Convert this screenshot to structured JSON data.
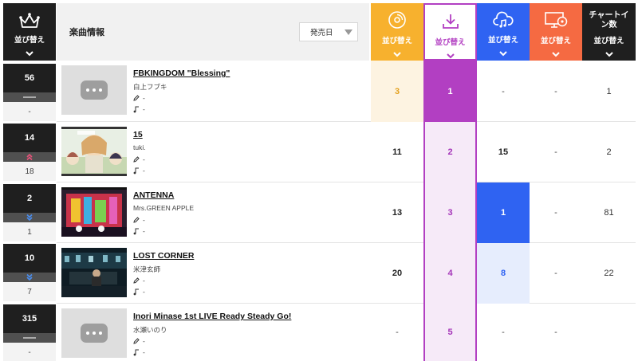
{
  "header": {
    "rank_sort_label": "並び替え",
    "info_title": "楽曲情報",
    "sort_select_value": "発売日",
    "col_sort_label": "並び替え",
    "chart_in_label": "チャートイン数"
  },
  "colors": {
    "col1": "#f7b12e",
    "col2": "#b23fc2",
    "col3": "#2f63f2",
    "col4": "#f56a42",
    "dark": "#1f1f1f"
  },
  "rows": [
    {
      "rank": "56",
      "prev": "-",
      "move": "none",
      "title": "FBKINGDOM \"Blessing\"",
      "artist": "白上フブキ",
      "lyricist": "-",
      "composer": "-",
      "thumb": "placeholder",
      "c1": "3",
      "c2": "1",
      "c3": "-",
      "c4": "-",
      "c5": "1"
    },
    {
      "rank": "14",
      "prev": "18",
      "move": "up",
      "title": "15",
      "artist": "tuki.",
      "lyricist": "-",
      "composer": "-",
      "thumb": "anime",
      "c1": "11",
      "c2": "2",
      "c3": "15",
      "c4": "-",
      "c5": "2"
    },
    {
      "rank": "2",
      "prev": "1",
      "move": "down",
      "title": "ANTENNA",
      "artist": "Mrs.GREEN APPLE",
      "lyricist": "-",
      "composer": "-",
      "thumb": "colorful",
      "c1": "13",
      "c2": "3",
      "c3": "1",
      "c4": "-",
      "c5": "81"
    },
    {
      "rank": "10",
      "prev": "7",
      "move": "down",
      "title": "LOST CORNER",
      "artist": "米津玄師",
      "lyricist": "-",
      "composer": "-",
      "thumb": "night",
      "c1": "20",
      "c2": "4",
      "c3": "8",
      "c4": "-",
      "c5": "22"
    },
    {
      "rank": "315",
      "prev": "-",
      "move": "none",
      "title": "Inori Minase 1st LIVE Ready Steady Go!",
      "artist": "水瀬いのり",
      "lyricist": "-",
      "composer": "-",
      "thumb": "placeholder",
      "c1": "-",
      "c2": "5",
      "c3": "-",
      "c4": "-",
      "c5": ""
    }
  ]
}
